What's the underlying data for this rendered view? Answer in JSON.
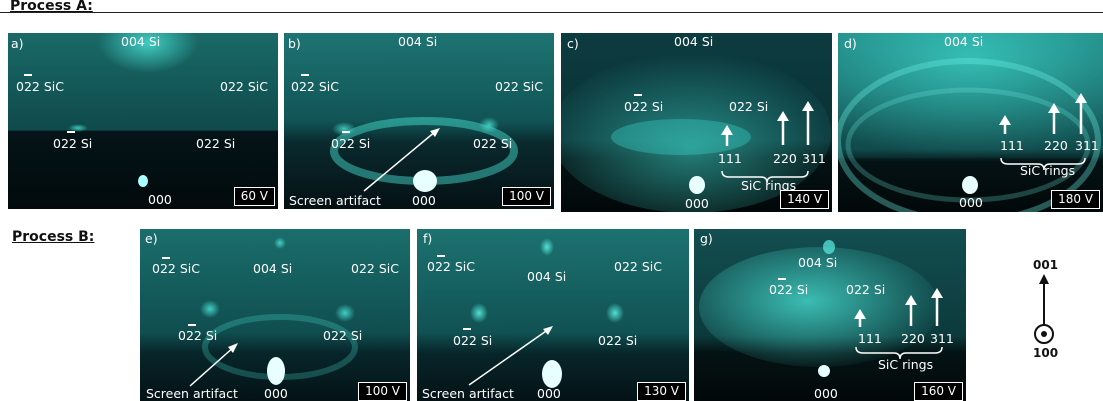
{
  "headers": {
    "process_a": "Process A:",
    "process_b": "Process B:"
  },
  "panels": {
    "a": {
      "letter": "a)",
      "l004": "004 Si",
      "l022sic_left": "022 SiC",
      "l022sic_right": "022 SiC",
      "l022si_left": "022 Si",
      "l022si_right": "022 Si",
      "l000": "000",
      "voltage": "60 V"
    },
    "b": {
      "letter": "b)",
      "l004": "004 Si",
      "l022sic_left": "022 SiC",
      "l022sic_right": "022 SiC",
      "l022si_left": "022 Si",
      "l022si_right": "022 Si",
      "l000": "000",
      "artifact": "Screen artifact",
      "voltage": "100 V"
    },
    "c": {
      "letter": "c)",
      "l004": "004 Si",
      "l022si_left": "022 Si",
      "l022si_right": "022 Si",
      "l000": "000",
      "r111": "111",
      "r220": "220",
      "r311": "311",
      "rings": "SiC rings",
      "voltage": "140 V"
    },
    "d": {
      "letter": "d)",
      "l004": "004 Si",
      "l000": "000",
      "r111": "111",
      "r220": "220",
      "r311": "311",
      "rings": "SiC rings",
      "voltage": "180 V"
    },
    "e": {
      "letter": "e)",
      "l004": "004 Si",
      "l022sic_left": "022 SiC",
      "l022sic_right": "022 SiC",
      "l022si_left": "022 Si",
      "l022si_right": "022 Si",
      "l000": "000",
      "artifact": "Screen artifact",
      "voltage": "100 V"
    },
    "f": {
      "letter": "f)",
      "l004": "004 Si",
      "l022sic_left": "022 SiC",
      "l022sic_right": "022 SiC",
      "l022si_left": "022 Si",
      "l022si_right": "022 Si",
      "l000": "000",
      "artifact": "Screen artifact",
      "voltage": "130 V"
    },
    "g": {
      "letter": "g)",
      "l004": "004 Si",
      "l022si_left": "022 Si",
      "l022si_right": "022 Si",
      "l000": "000",
      "r111": "111",
      "r220": "220",
      "r311": "311",
      "rings": "SiC rings",
      "voltage": "160 V"
    }
  },
  "axis": {
    "top": "001",
    "bottom": "100"
  },
  "colors": {
    "glow": "#3ce8d8",
    "background": "#04181c",
    "text": "#ffffff"
  }
}
